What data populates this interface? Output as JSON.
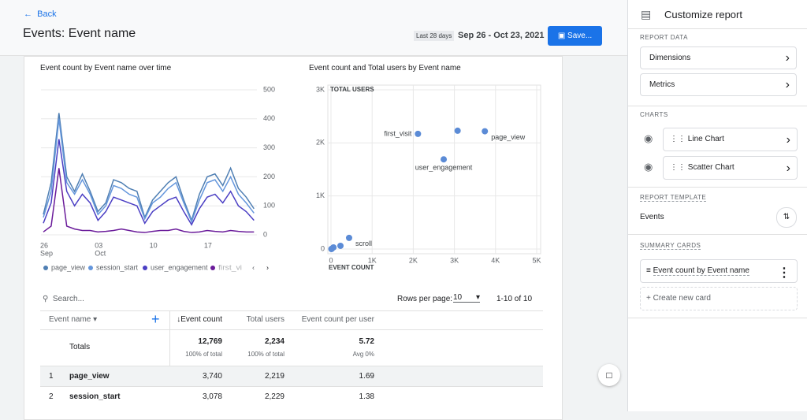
{
  "header": {
    "back": "Back",
    "title": "Events: Event name",
    "date_label": "Last 28 days",
    "date_range": "Sep 26 - Oct 23, 2021",
    "save": "Save..."
  },
  "line_chart": {
    "type": "line",
    "title": "Event count by Event name over time",
    "ylim": [
      0,
      500
    ],
    "yticks": [
      0,
      100,
      200,
      300,
      400,
      500
    ],
    "x_labels": [
      [
        "26",
        "Sep"
      ],
      [
        "03",
        "Oct"
      ],
      [
        "10"
      ],
      [
        "17"
      ]
    ],
    "series": [
      {
        "name": "page_view",
        "color": "#4f7fb3",
        "values": [
          70,
          180,
          420,
          200,
          150,
          210,
          150,
          80,
          110,
          190,
          180,
          160,
          150,
          60,
          120,
          150,
          180,
          200,
          120,
          50,
          140,
          200,
          210,
          170,
          230,
          160,
          130,
          90
        ]
      },
      {
        "name": "session_start",
        "color": "#6496dc",
        "values": [
          60,
          150,
          400,
          180,
          140,
          190,
          140,
          70,
          100,
          170,
          160,
          140,
          130,
          55,
          110,
          130,
          160,
          180,
          110,
          45,
          120,
          180,
          190,
          150,
          200,
          140,
          110,
          75
        ]
      },
      {
        "name": "user_engagement",
        "color": "#4b3fc4",
        "values": [
          40,
          110,
          330,
          150,
          100,
          140,
          110,
          50,
          80,
          130,
          120,
          110,
          100,
          40,
          80,
          100,
          120,
          130,
          80,
          35,
          90,
          130,
          140,
          110,
          150,
          100,
          80,
          50
        ]
      },
      {
        "name": "first_visit",
        "color": "#6a1b9a",
        "values": [
          10,
          30,
          230,
          30,
          20,
          15,
          15,
          10,
          12,
          15,
          20,
          15,
          10,
          8,
          12,
          15,
          15,
          20,
          12,
          8,
          10,
          15,
          12,
          10,
          15,
          12,
          10,
          10
        ]
      }
    ]
  },
  "scatter_chart": {
    "type": "scatter",
    "title": "Event count and Total users by Event name",
    "y_label": "TOTAL USERS",
    "x_label": "EVENT COUNT",
    "color": "#5b8bd6",
    "xlim": [
      0,
      5000
    ],
    "ylim": [
      0,
      3000
    ],
    "xticks": [
      0,
      {
        "value": 1000,
        "label": "1K"
      },
      {
        "value": 2000,
        "label": "2K"
      },
      {
        "value": 3000,
        "label": "3K"
      },
      {
        "value": 4000,
        "label": "4K"
      },
      {
        "value": 5000,
        "label": "5K"
      }
    ],
    "yticks": [
      0,
      {
        "value": 1000,
        "label": "1K"
      },
      {
        "value": 2000,
        "label": "2K"
      },
      {
        "value": 3000,
        "label": "3K"
      }
    ],
    "points": [
      {
        "name": "page_view",
        "x": 3740,
        "y": 2219
      },
      {
        "x": 3078,
        "y": 2229
      },
      {
        "name": "first_visit",
        "x": 2114,
        "y": 2170
      },
      {
        "name": "user_engagement",
        "x": 2740,
        "y": 1690
      },
      {
        "name": "scroll",
        "x": 440,
        "y": 210
      },
      {
        "x": 230,
        "y": 60
      },
      {
        "x": 60,
        "y": 30
      },
      {
        "x": 20,
        "y": 5
      },
      {
        "x": 10,
        "y": 0
      }
    ]
  },
  "table": {
    "search": "Search...",
    "rows_per_page_label": "Rows per page:",
    "rows_per_page": "10",
    "range": "1-10 of 10",
    "columns": [
      "Event name",
      "Event count",
      "Total users",
      "Event count per user"
    ],
    "totals": {
      "label": "Totals",
      "cells": [
        [
          "12,769",
          "100% of total"
        ],
        [
          "2,234",
          "100% of total"
        ],
        [
          "5.72",
          "Avg 0%"
        ]
      ]
    },
    "rows": [
      [
        "1",
        "page_view",
        "3,740",
        "2,219",
        "1.69"
      ],
      [
        "2",
        "session_start",
        "3,078",
        "2,229",
        "1.38"
      ]
    ]
  },
  "panel": {
    "title": "Customize report",
    "report_data": {
      "heading": "REPORT DATA",
      "items": [
        "Dimensions",
        "Metrics"
      ]
    },
    "charts": {
      "heading": "CHARTS",
      "items": [
        "Line Chart",
        "Scatter Chart"
      ]
    },
    "template": {
      "heading": "REPORT TEMPLATE",
      "name": "Events"
    },
    "summary": {
      "heading": "SUMMARY CARDS",
      "card": "Event count by Event name",
      "create": "Create new card"
    }
  }
}
